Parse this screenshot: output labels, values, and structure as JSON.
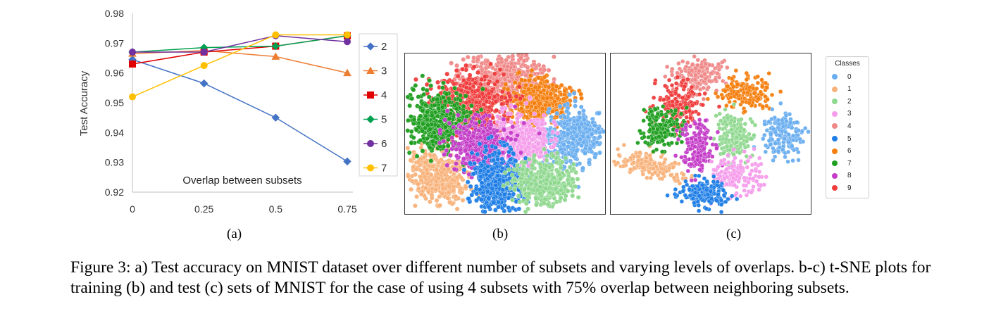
{
  "chart_data": {
    "type": "line",
    "x": [
      0,
      0.25,
      0.5,
      0.75
    ],
    "xtick_labels": [
      "0",
      "0.25",
      "0.5",
      "0.75"
    ],
    "ylabel": "Test Accuracy",
    "ylim": [
      0.92,
      0.98
    ],
    "ytick_labels": [
      "0.92",
      "0.93",
      "0.94",
      "0.95",
      "0.96",
      "0.97",
      "0.98"
    ],
    "annotation": "Overlap between subsets",
    "legend_placement": "right",
    "series": [
      {
        "name": "2",
        "color": "#4472C4",
        "marker": "diamond",
        "values": [
          0.9645,
          0.9565,
          0.945,
          0.9303
        ]
      },
      {
        "name": "3",
        "color": "#ED7D31",
        "marker": "triangle",
        "values": [
          0.9665,
          0.9675,
          0.9655,
          0.96
        ]
      },
      {
        "name": "4",
        "color": "#E00000",
        "marker": "square",
        "values": [
          0.963,
          0.967,
          0.969,
          0.9725
        ]
      },
      {
        "name": "5",
        "color": "#00A050",
        "marker": "diamond",
        "values": [
          0.967,
          0.9685,
          0.969,
          0.9725
        ]
      },
      {
        "name": "6",
        "color": "#7030A0",
        "marker": "circle",
        "values": [
          0.967,
          0.967,
          0.9725,
          0.9705
        ]
      },
      {
        "name": "7",
        "color": "#FFC000",
        "marker": "circle",
        "values": [
          0.952,
          0.9625,
          0.9728,
          0.9728
        ]
      }
    ]
  },
  "panel_labels": [
    "(a)",
    "(b)",
    "(c)"
  ],
  "tsne_legend": {
    "title": "Classes",
    "classes": [
      {
        "label": "0",
        "color": "#6AAEF0"
      },
      {
        "label": "1",
        "color": "#F8B27A"
      },
      {
        "label": "2",
        "color": "#8FD88F"
      },
      {
        "label": "3",
        "color": "#F59CEB"
      },
      {
        "label": "4",
        "color": "#F08888"
      },
      {
        "label": "5",
        "color": "#1E7EE6"
      },
      {
        "label": "6",
        "color": "#F57F0E"
      },
      {
        "label": "7",
        "color": "#1E9E1E"
      },
      {
        "label": "8",
        "color": "#C43CC8"
      },
      {
        "label": "9",
        "color": "#F03C3C"
      }
    ]
  },
  "caption": "Figure 3: a) Test accuracy on MNIST dataset over different number of subsets and varying levels of overlaps. b-c) t-SNE plots for training (b) and test (c) sets of MNIST for the case of using 4 subsets with 75% overlap between neighboring subsets."
}
